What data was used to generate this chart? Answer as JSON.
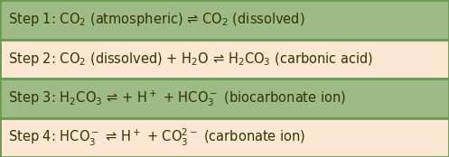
{
  "steps": [
    "Step 1: CO$_2$ (atmospheric) ⇌ CO$_2$ (dissolved)",
    "Step 2: CO$_2$ (dissolved) + H$_2$O ⇌ H$_2$CO$_3$ (carbonic acid)",
    "Step 3: H$_2$CO$_3$ ⇌ + H$^+$ + HCO$_3^-$ (biocarbonate ion)",
    "Step 4: HCO$_3^-$ ⇌ H$^+$ + CO$_3^{2-}$ (carbonate ion)"
  ],
  "row_colors": [
    "#9dba87",
    "#fce8d2",
    "#9dba87",
    "#fce8d2"
  ],
  "border_color": "#6a9a50",
  "text_color": "#333300",
  "fontsize": 10.5,
  "background": "#9dba87",
  "fig_width": 4.97,
  "fig_height": 1.74,
  "dpi": 100
}
